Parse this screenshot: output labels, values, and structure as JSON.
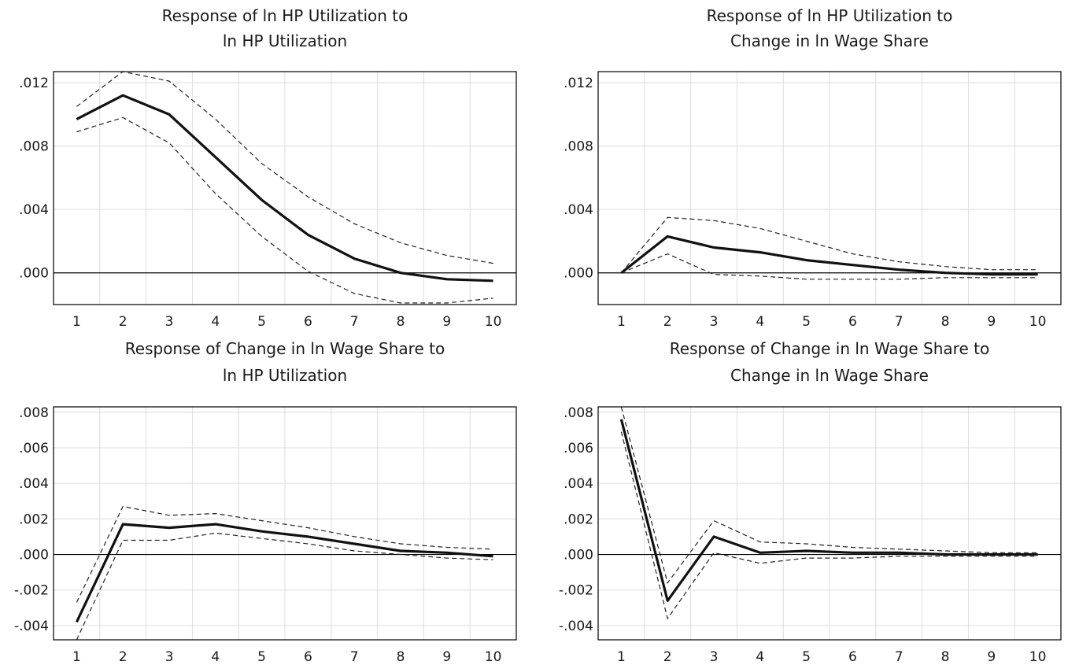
{
  "chart_data": [
    {
      "type": "line",
      "title": [
        "Response of ln HP Utilization to",
        "ln HP Utilization"
      ],
      "x": [
        1,
        2,
        3,
        4,
        5,
        6,
        7,
        8,
        9,
        10
      ],
      "ylim": [
        -0.002,
        0.0127
      ],
      "yticks": [
        ".012",
        ".008",
        ".004",
        ".000"
      ],
      "ytick_values": [
        0.012,
        0.008,
        0.004,
        0.0
      ],
      "grid": true,
      "series": [
        {
          "role": "response",
          "values": [
            0.0097,
            0.0112,
            0.01,
            0.0073,
            0.0046,
            0.0024,
            0.0009,
            0.0,
            -0.0004,
            -0.0005
          ]
        },
        {
          "role": "upper",
          "values": [
            0.0105,
            0.0127,
            0.0121,
            0.0097,
            0.0069,
            0.0048,
            0.0031,
            0.0019,
            0.0011,
            0.0006
          ]
        },
        {
          "role": "lower",
          "values": [
            0.0089,
            0.0098,
            0.0082,
            0.005,
            0.0023,
            0.0001,
            -0.0013,
            -0.0019,
            -0.0019,
            -0.0016
          ]
        }
      ]
    },
    {
      "type": "line",
      "title": [
        "Response of ln HP Utilization to",
        "Change in ln Wage Share"
      ],
      "x": [
        1,
        2,
        3,
        4,
        5,
        6,
        7,
        8,
        9,
        10
      ],
      "ylim": [
        -0.002,
        0.0127
      ],
      "yticks": [
        ".012",
        ".008",
        ".004",
        ".000"
      ],
      "ytick_values": [
        0.012,
        0.008,
        0.004,
        0.0
      ],
      "grid": true,
      "series": [
        {
          "role": "response",
          "values": [
            0.0,
            0.0023,
            0.0016,
            0.0013,
            0.0008,
            0.0005,
            0.0002,
            0.0,
            -0.0001,
            -0.0001
          ]
        },
        {
          "role": "upper",
          "values": [
            0.0,
            0.0035,
            0.0033,
            0.0028,
            0.002,
            0.0012,
            0.0007,
            0.0004,
            0.0002,
            0.0002
          ]
        },
        {
          "role": "lower",
          "values": [
            0.0,
            0.0012,
            -0.0001,
            -0.0002,
            -0.0004,
            -0.0004,
            -0.0004,
            -0.0003,
            -0.0003,
            -0.0003
          ]
        }
      ]
    },
    {
      "type": "line",
      "title": [
        "Response of Change in ln Wage Share to",
        "ln HP Utilization"
      ],
      "x": [
        1,
        2,
        3,
        4,
        5,
        6,
        7,
        8,
        9,
        10
      ],
      "ylim": [
        -0.0048,
        0.0083
      ],
      "yticks": [
        ".008",
        ".006",
        ".004",
        ".002",
        ".000",
        "-.002",
        "-.004"
      ],
      "ytick_values": [
        0.008,
        0.006,
        0.004,
        0.002,
        0.0,
        -0.002,
        -0.004
      ],
      "grid": true,
      "series": [
        {
          "role": "response",
          "values": [
            -0.0038,
            0.0017,
            0.0015,
            0.0017,
            0.0013,
            0.001,
            0.0006,
            0.0002,
            0.0001,
            -0.0001
          ]
        },
        {
          "role": "upper",
          "values": [
            -0.0027,
            0.0027,
            0.0022,
            0.0023,
            0.0019,
            0.0015,
            0.001,
            0.0006,
            0.0004,
            0.0003
          ]
        },
        {
          "role": "lower",
          "values": [
            -0.0048,
            0.0008,
            0.0008,
            0.0012,
            0.0009,
            0.0006,
            0.0002,
            0.0,
            -0.0002,
            -0.0003
          ]
        }
      ]
    },
    {
      "type": "line",
      "title": [
        "Response of Change in ln Wage Share to",
        "Change in ln Wage Share"
      ],
      "x": [
        1,
        2,
        3,
        4,
        5,
        6,
        7,
        8,
        9,
        10
      ],
      "ylim": [
        -0.0048,
        0.0083
      ],
      "yticks": [
        ".008",
        ".006",
        ".004",
        ".002",
        ".000",
        "-.002",
        "-.004"
      ],
      "ytick_values": [
        0.008,
        0.006,
        0.004,
        0.002,
        0.0,
        -0.002,
        -0.004
      ],
      "grid": true,
      "series": [
        {
          "role": "response",
          "values": [
            0.0076,
            -0.0026,
            0.001,
            0.0001,
            0.0002,
            0.0001,
            0.0001,
            0.0,
            0.0,
            0.0
          ]
        },
        {
          "role": "upper",
          "values": [
            0.0083,
            -0.0016,
            0.0019,
            0.0007,
            0.0006,
            0.0004,
            0.0003,
            0.0002,
            0.0001,
            0.0001
          ]
        },
        {
          "role": "lower",
          "values": [
            0.0069,
            -0.0036,
            0.0001,
            -0.0005,
            -0.0002,
            -0.0002,
            -0.0001,
            -0.0001,
            -0.0001,
            -0.0001
          ]
        }
      ]
    }
  ]
}
